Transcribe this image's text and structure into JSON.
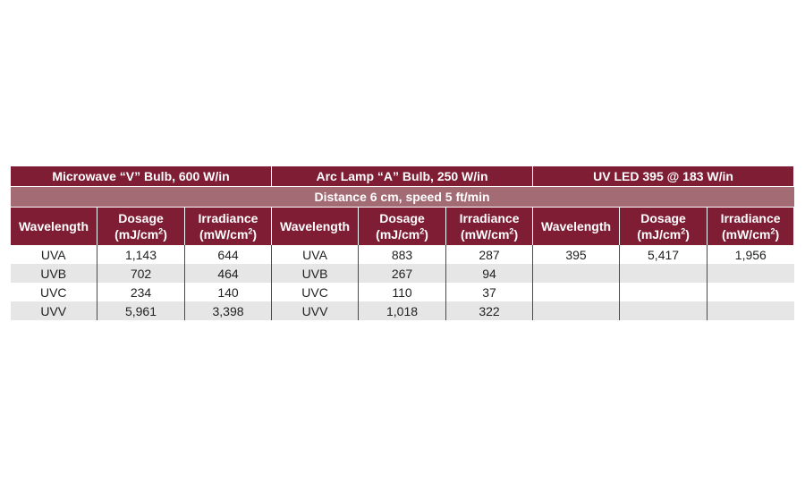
{
  "groups": [
    "Microwave “V” Bulb, 600 W/in",
    "Arc Lamp “A” Bulb, 250 W/in",
    "UV LED 395 @ 183 W/in"
  ],
  "subheader": "Distance 6 cm, speed 5 ft/min",
  "columns": {
    "wavelength": "Wavelength",
    "dosage_line1": "Dosage",
    "dosage_line2": "(mJ/cm",
    "irradiance_line1": "Irradiance",
    "irradiance_line2": "(mW/cm",
    "unit_exponent": "2",
    "unit_close": ")"
  },
  "rows": [
    [
      "UVA",
      "1,143",
      "644",
      "UVA",
      "883",
      "287",
      "395",
      "5,417",
      "1,956"
    ],
    [
      "UVB",
      "702",
      "464",
      "UVB",
      "267",
      "94",
      "",
      "",
      ""
    ],
    [
      "UVC",
      "234",
      "140",
      "UVC",
      "110",
      "37",
      "",
      "",
      ""
    ],
    [
      "UVV",
      "5,961",
      "3,398",
      "UVV",
      "1,018",
      "322",
      "",
      "",
      ""
    ]
  ]
}
